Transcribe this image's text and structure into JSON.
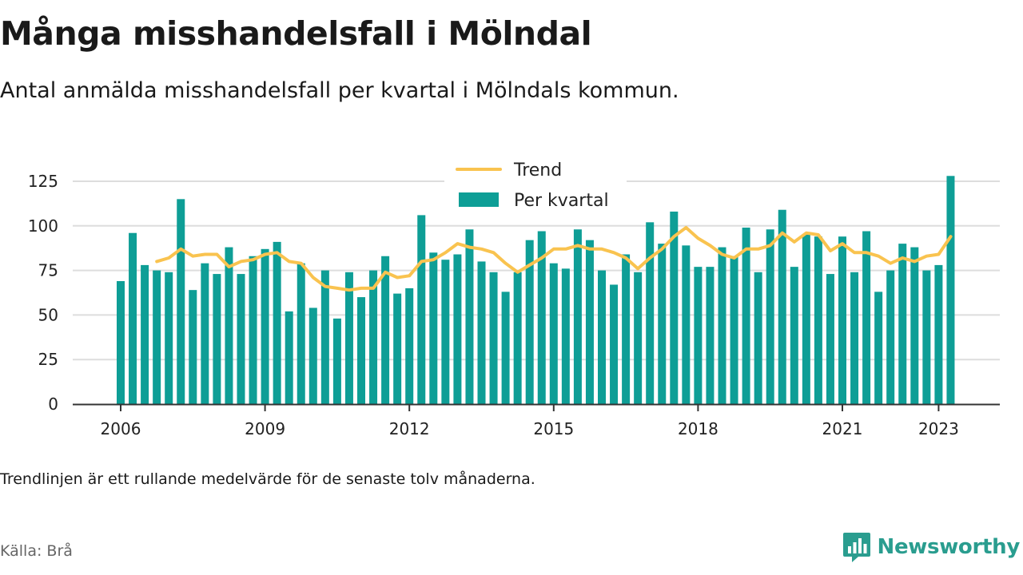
{
  "title": "Många misshandelsfall i Mölndal",
  "subtitle": "Antal anmälda misshandelsfall per kvartal i Mölndals kommun.",
  "note": "Trendlinjen är ett rullande medelvärde för de senaste tolv månaderna.",
  "source": "Källa: Brå",
  "brand": {
    "name": "Newsworthy",
    "icon": "newsworthy-logo-icon"
  },
  "colors": {
    "bars": "#0e9e96",
    "trend": "#f9c34f",
    "grid": "#dddddd",
    "axis": "#333333"
  },
  "chart_data": {
    "type": "bar",
    "title": "Många misshandelsfall i Mölndal",
    "x_unit": "quarter",
    "x": [
      "2006Q1",
      "2006Q2",
      "2006Q3",
      "2006Q4",
      "2007Q1",
      "2007Q2",
      "2007Q3",
      "2007Q4",
      "2008Q1",
      "2008Q2",
      "2008Q3",
      "2008Q4",
      "2009Q1",
      "2009Q2",
      "2009Q3",
      "2009Q4",
      "2010Q1",
      "2010Q2",
      "2010Q3",
      "2010Q4",
      "2011Q1",
      "2011Q2",
      "2011Q3",
      "2011Q4",
      "2012Q1",
      "2012Q2",
      "2012Q3",
      "2012Q4",
      "2013Q1",
      "2013Q2",
      "2013Q3",
      "2013Q4",
      "2014Q1",
      "2014Q2",
      "2014Q3",
      "2014Q4",
      "2015Q1",
      "2015Q2",
      "2015Q3",
      "2015Q4",
      "2016Q1",
      "2016Q2",
      "2016Q3",
      "2016Q4",
      "2017Q1",
      "2017Q2",
      "2017Q3",
      "2017Q4",
      "2018Q1",
      "2018Q2",
      "2018Q3",
      "2018Q4",
      "2019Q1",
      "2019Q2",
      "2019Q3",
      "2019Q4",
      "2020Q1",
      "2020Q2",
      "2020Q3",
      "2020Q4",
      "2021Q1",
      "2021Q2",
      "2021Q3",
      "2021Q4",
      "2022Q1",
      "2022Q2",
      "2022Q3",
      "2022Q4",
      "2023Q1",
      "2023Q2"
    ],
    "series": [
      {
        "name": "Per kvartal",
        "type": "bar",
        "values": [
          69,
          96,
          78,
          75,
          74,
          115,
          64,
          79,
          73,
          88,
          73,
          83,
          87,
          91,
          52,
          79,
          54,
          75,
          48,
          74,
          60,
          75,
          83,
          62,
          65,
          106,
          85,
          81,
          84,
          98,
          80,
          74,
          63,
          74,
          92,
          97,
          79,
          76,
          98,
          92,
          75,
          67,
          84,
          74,
          102,
          90,
          108,
          89,
          77,
          77,
          88,
          83,
          99,
          74,
          98,
          109,
          77,
          95,
          94,
          73,
          94,
          74,
          97,
          63,
          75,
          90,
          88,
          75,
          78,
          128
        ]
      },
      {
        "name": "Trend",
        "type": "line",
        "values": [
          null,
          null,
          null,
          80,
          82,
          87,
          83,
          84,
          84,
          77,
          80,
          81,
          84,
          85,
          80,
          79,
          71,
          66,
          65,
          64,
          65,
          65,
          74,
          71,
          72,
          80,
          81,
          85,
          90,
          88,
          87,
          85,
          79,
          74,
          78,
          82,
          87,
          87,
          89,
          87,
          87,
          85,
          82,
          76,
          82,
          87,
          94,
          99,
          93,
          89,
          84,
          82,
          87,
          87,
          89,
          96,
          91,
          96,
          95,
          86,
          90,
          85,
          85,
          83,
          79,
          82,
          80,
          83,
          84,
          94
        ]
      }
    ],
    "x_ticks": [
      "2006",
      "2009",
      "2012",
      "2015",
      "2018",
      "2021",
      "2023"
    ],
    "y_ticks": [
      0,
      25,
      50,
      75,
      100,
      125
    ],
    "ylim": [
      0,
      125
    ],
    "grid": "horizontal",
    "legend": {
      "position": "top-center",
      "entries": [
        "Trend",
        "Per kvartal"
      ]
    }
  }
}
